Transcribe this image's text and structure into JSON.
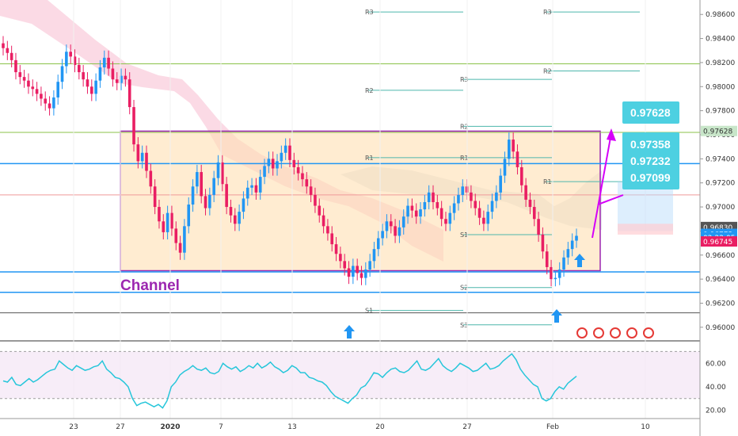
{
  "chart_data": [
    {
      "type": "candlestick",
      "title": "",
      "colors": {
        "up": "#2196f3",
        "down": "#e91e63",
        "cloud": "#f8bbd0",
        "channel": "#9c27b0",
        "channel_fill": "#ffe0b2"
      },
      "y_axis": {
        "range": [
          0.959,
          0.9872
        ],
        "ticks": [
          0.96,
          0.962,
          0.964,
          0.966,
          0.968,
          0.97,
          0.972,
          0.974,
          0.976,
          0.978,
          0.98,
          0.982,
          0.984,
          0.986
        ],
        "tick_labels": [
          "0.96000",
          "0.96200",
          "0.96400",
          "0.96600",
          "0.96800",
          "0.97000",
          "0.97200",
          "0.97400",
          "0.97600",
          "0.97800",
          "0.98000",
          "0.98200",
          "0.98400",
          "0.98600"
        ]
      },
      "x_axis": {
        "labels": [
          "23",
          "27",
          "2020",
          "7",
          "13",
          "20",
          "27",
          "Feb",
          "10"
        ],
        "bold": [
          "2020"
        ]
      },
      "horizontal_levels": [
        {
          "price": 0.9762,
          "color": "#8bc34a",
          "style": "solid"
        },
        {
          "price": 0.9819,
          "color": "#8bc34a",
          "style": "solid"
        },
        {
          "price": 0.9736,
          "color": "#2196f3",
          "style": "solid"
        },
        {
          "price": 0.971,
          "color": "#ef9a9a",
          "style": "solid"
        },
        {
          "price": 0.9646,
          "color": "#2196f3",
          "style": "solid"
        },
        {
          "price": 0.9629,
          "color": "#2196f3",
          "style": "solid"
        },
        {
          "price": 0.9612,
          "color": "#555555",
          "style": "solid"
        }
      ],
      "pivots": [
        {
          "label": "R3",
          "price": 0.9862,
          "from": 0.32,
          "to": 0.43
        },
        {
          "label": "R2",
          "price": 0.9797,
          "from": 0.32,
          "to": 0.43
        },
        {
          "label": "R1",
          "price": 0.9741,
          "from": 0.32,
          "to": 0.43
        },
        {
          "label": "S1",
          "price": 0.9614,
          "from": 0.32,
          "to": 0.43
        },
        {
          "label": "R3",
          "price": 0.9806,
          "from": 0.43,
          "to": 0.76
        },
        {
          "label": "R2",
          "price": 0.9767,
          "from": 0.43,
          "to": 0.76
        },
        {
          "label": "R1",
          "price": 0.9741,
          "from": 0.43,
          "to": 0.76
        },
        {
          "label": "S1",
          "price": 0.9677,
          "from": 0.43,
          "to": 0.76
        },
        {
          "label": "S2",
          "price": 0.9633,
          "from": 0.43,
          "to": 0.76
        },
        {
          "label": "S3",
          "price": 0.9602,
          "from": 0.43,
          "to": 0.76
        },
        {
          "label": "R3",
          "price": 0.9862,
          "from": 0.76,
          "to": 1.0
        },
        {
          "label": "R2",
          "price": 0.9813,
          "from": 0.76,
          "to": 1.0
        },
        {
          "label": "R1",
          "price": 0.9721,
          "from": 0.76,
          "to": 1.0
        }
      ],
      "channel": {
        "label": "Channel",
        "top": 0.9763,
        "bottom": 0.9647
      },
      "callouts": [
        {
          "value": "0.97628"
        },
        {
          "value": "0.97358"
        },
        {
          "value": "0.97232"
        },
        {
          "value": "0.97099"
        }
      ],
      "price_tags": [
        {
          "value": "0.97628",
          "price": 0.97628,
          "bg": "#c8e6c9",
          "fg": "#333"
        },
        {
          "value": "0.96830",
          "price": 0.9683,
          "bg": "#555555",
          "fg": "#fff"
        },
        {
          "value": "0.96773",
          "price": 0.96773,
          "bg": "#2196f3",
          "fg": "#fff"
        },
        {
          "value": "02:22:05",
          "price": 0.96745,
          "bg": "#2196f3",
          "fg": "#fff"
        },
        {
          "value": "0.96745",
          "price": 0.9671,
          "bg": "#e91e63",
          "fg": "#fff"
        }
      ],
      "close_series": [
        0.9832,
        0.9828,
        0.9822,
        0.9812,
        0.9808,
        0.9805,
        0.98,
        0.9798,
        0.9794,
        0.979,
        0.9786,
        0.9782,
        0.9791,
        0.9804,
        0.9817,
        0.9829,
        0.9825,
        0.9818,
        0.9812,
        0.9806,
        0.98,
        0.9794,
        0.9805,
        0.9816,
        0.9824,
        0.9815,
        0.9806,
        0.9803,
        0.9809,
        0.9806,
        0.9783,
        0.9752,
        0.9738,
        0.9745,
        0.973,
        0.9717,
        0.97,
        0.9688,
        0.9679,
        0.9695,
        0.9682,
        0.967,
        0.9662,
        0.9684,
        0.9702,
        0.9717,
        0.9729,
        0.9709,
        0.9699,
        0.971,
        0.9724,
        0.9737,
        0.9719,
        0.97,
        0.9693,
        0.9686,
        0.9696,
        0.9707,
        0.9716,
        0.9718,
        0.9712,
        0.9725,
        0.9734,
        0.974,
        0.9732,
        0.9738,
        0.9745,
        0.9751,
        0.9739,
        0.9733,
        0.9728,
        0.9723,
        0.9717,
        0.971,
        0.9701,
        0.9693,
        0.9684,
        0.9678,
        0.9669,
        0.9661,
        0.9655,
        0.9649,
        0.9642,
        0.9651,
        0.9645,
        0.9641,
        0.9648,
        0.9655,
        0.9665,
        0.9674,
        0.968,
        0.9688,
        0.9684,
        0.9676,
        0.9683,
        0.9692,
        0.9701,
        0.9697,
        0.9692,
        0.9698,
        0.9704,
        0.9712,
        0.9704,
        0.9699,
        0.969,
        0.9686,
        0.9695,
        0.9703,
        0.971,
        0.9717,
        0.9712,
        0.9705,
        0.9699,
        0.9691,
        0.9686,
        0.9696,
        0.9705,
        0.9712,
        0.9726,
        0.974,
        0.9756,
        0.9746,
        0.9733,
        0.9718,
        0.9706,
        0.97,
        0.969,
        0.9677,
        0.9663,
        0.965,
        0.964,
        0.9641,
        0.9648,
        0.9658,
        0.9665,
        0.9672,
        0.9676
      ],
      "rsi": {
        "ticks": [
          20,
          40,
          60
        ],
        "tick_labels": [
          "20.00",
          "40.00",
          "60.00"
        ],
        "range": [
          15,
          75
        ],
        "bands": [
          30,
          70
        ],
        "values": [
          45,
          44,
          48,
          42,
          41,
          44,
          47,
          44,
          46,
          49,
          52,
          54,
          55,
          62,
          59,
          56,
          54,
          58,
          56,
          54,
          55,
          57,
          58,
          62,
          55,
          52,
          48,
          47,
          44,
          40,
          30,
          24,
          26,
          27,
          25,
          23,
          25,
          22,
          28,
          40,
          44,
          50,
          53,
          55,
          58,
          55,
          54,
          56,
          52,
          51,
          53,
          60,
          57,
          55,
          57,
          53,
          55,
          58,
          56,
          60,
          56,
          58,
          61,
          57,
          55,
          52,
          54,
          58,
          56,
          52,
          52,
          48,
          47,
          45,
          44,
          41,
          36,
          32,
          30,
          28,
          26,
          30,
          33,
          39,
          41,
          46,
          52,
          51,
          48,
          52,
          55,
          56,
          53,
          52,
          54,
          58,
          62,
          55,
          54,
          56,
          60,
          64,
          58,
          55,
          53,
          56,
          60,
          58,
          56,
          53,
          54,
          57,
          60,
          55,
          56,
          58,
          62,
          65,
          68,
          63,
          55,
          50,
          46,
          42,
          40,
          30,
          28,
          30,
          36,
          40,
          38,
          43,
          46,
          49
        ]
      }
    }
  ]
}
